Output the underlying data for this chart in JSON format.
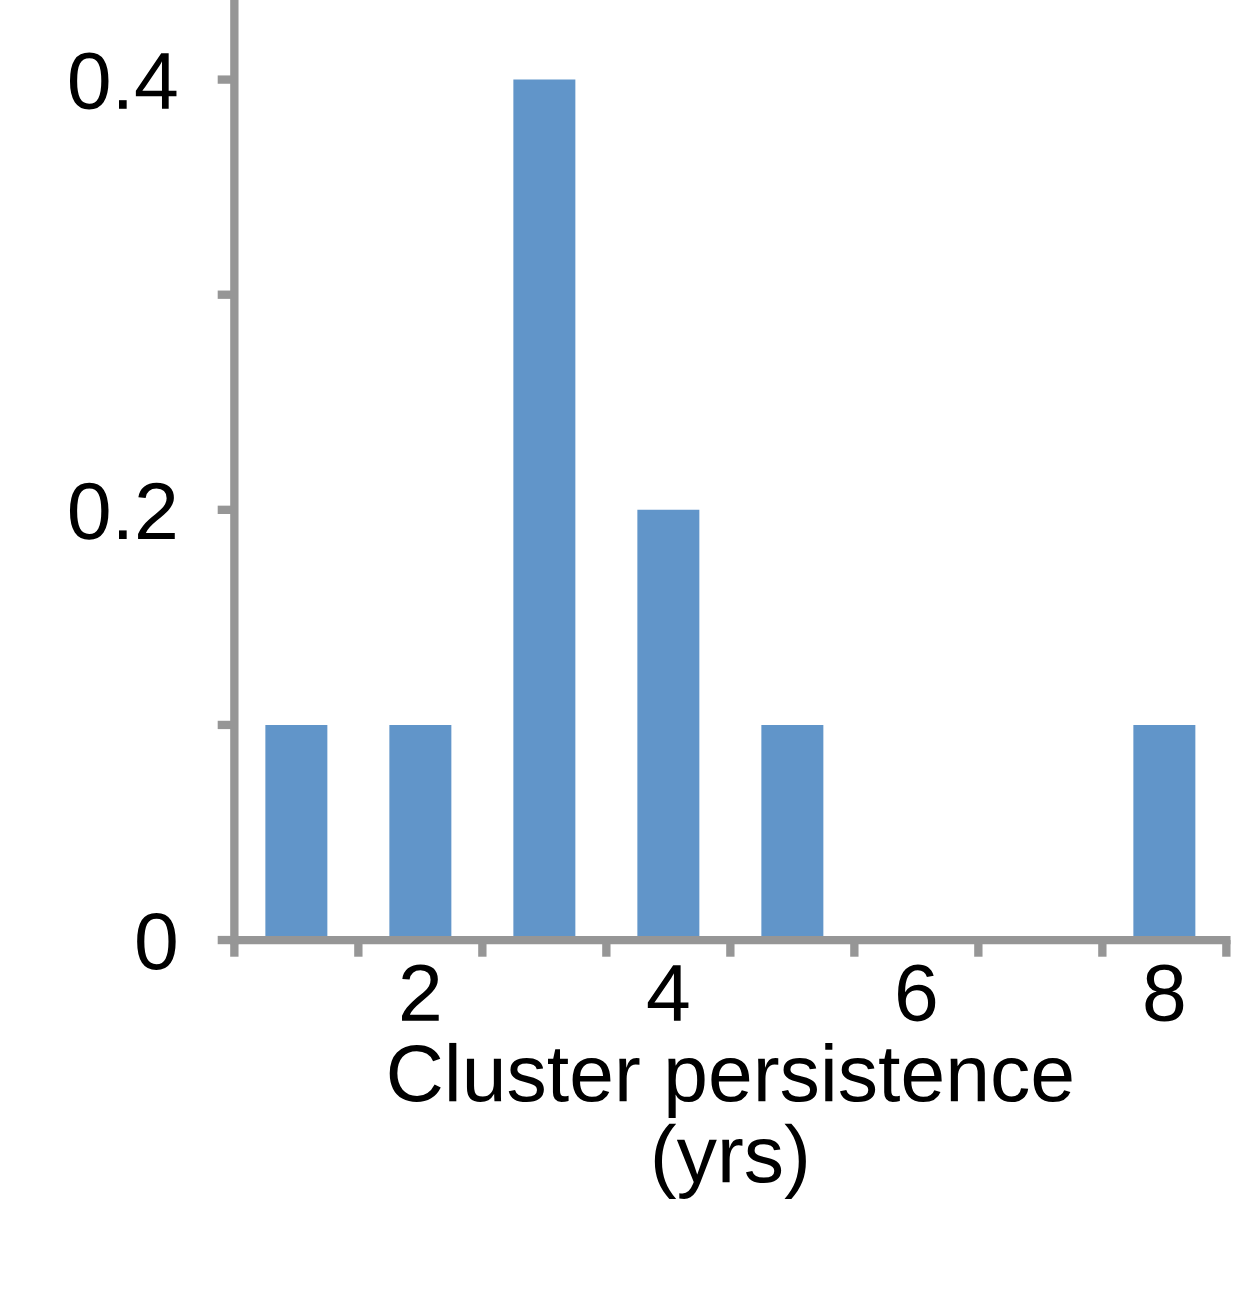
{
  "chart_data": {
    "type": "bar",
    "xlabel": "Cluster persistence\n(yrs)",
    "categories": [
      null,
      "2",
      null,
      "4",
      null,
      "6",
      null,
      "8"
    ],
    "values": [
      0.1,
      0.1,
      0.4,
      0.2,
      0.1,
      0,
      0,
      0.1
    ],
    "color": "#6195c9",
    "ylim": [
      0,
      0.437
    ],
    "yticks": [
      0,
      {
        "value": 0.1,
        "label": null
      },
      0.2,
      {
        "value": 0.3,
        "label": null
      },
      0.4
    ],
    "grid": false,
    "legend": false
  }
}
